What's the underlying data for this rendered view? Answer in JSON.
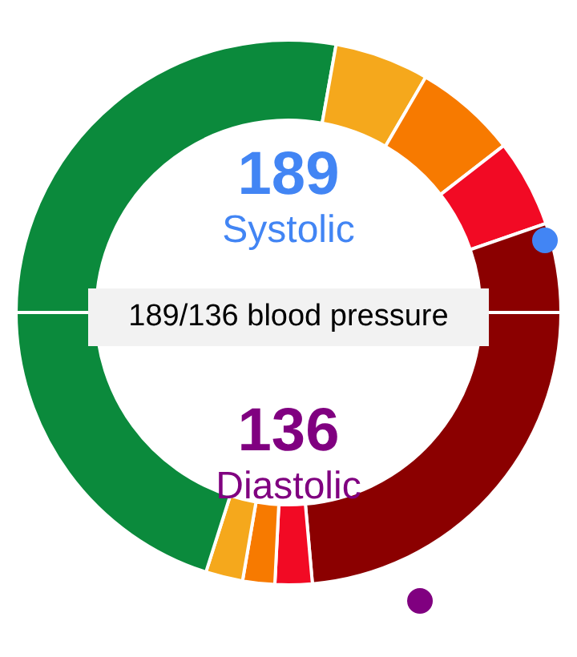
{
  "chart_data": {
    "type": "donut",
    "title": "189/136 blood pressure",
    "annotations": [
      "189",
      "Systolic",
      "136",
      "Diastolic"
    ],
    "categories": [
      null,
      null,
      null,
      null,
      null,
      null,
      null,
      null,
      null,
      null
    ],
    "values": [
      27.8,
      5.6,
      6.1,
      5.2,
      5.3,
      23.6,
      2.2,
      1.9,
      2.2,
      20.1
    ],
    "colors": [
      "#0b8a3c",
      "#f5a81c",
      "#f77a00",
      "#f20a24",
      "#8b0000",
      "#8b0000",
      "#f20a24",
      "#f77a00",
      "#f5a81c",
      "#0b8a3c"
    ]
  }
}
